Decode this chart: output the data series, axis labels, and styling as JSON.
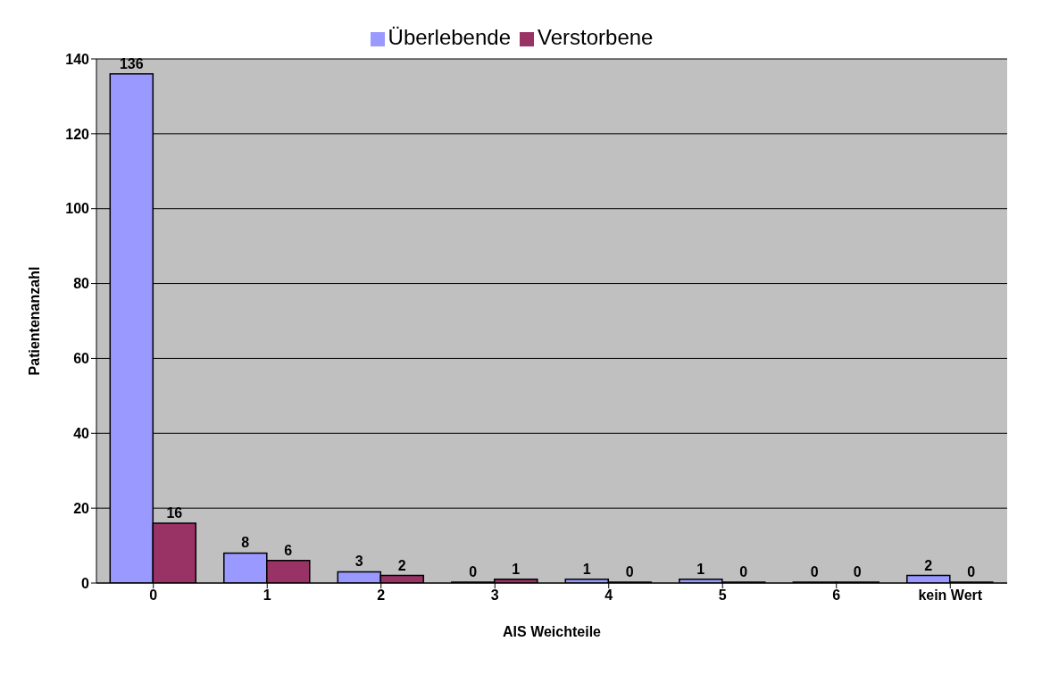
{
  "chart_data": {
    "type": "bar",
    "xlabel": "AIS Weichteile",
    "ylabel": "Patientenanzahl",
    "categories": [
      "0",
      "1",
      "2",
      "3",
      "4",
      "5",
      "6",
      "kein Wert"
    ],
    "series": [
      {
        "name": "Überlebende",
        "color": "#9999ff",
        "values": [
          136,
          8,
          3,
          0,
          1,
          1,
          0,
          2
        ]
      },
      {
        "name": "Verstorbene",
        "color": "#993366",
        "values": [
          16,
          6,
          2,
          1,
          0,
          0,
          0,
          0
        ]
      }
    ],
    "ylim": [
      0,
      140
    ],
    "yticks": [
      0,
      20,
      40,
      60,
      80,
      100,
      120,
      140
    ],
    "grid": "y",
    "legend": "top",
    "data_labels": true
  }
}
